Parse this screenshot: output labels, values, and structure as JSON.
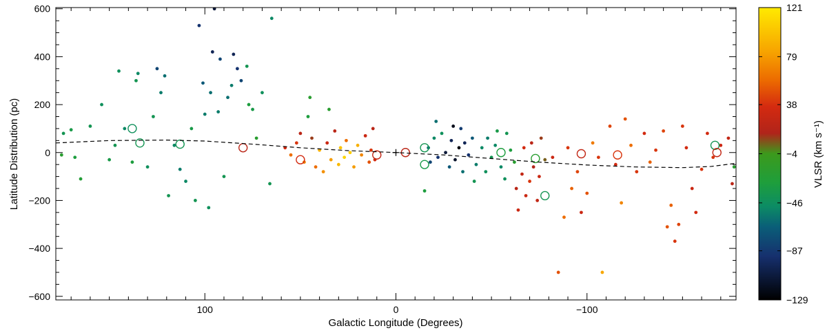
{
  "chart_data": {
    "type": "scatter",
    "xlabel": "Galactic Longitude (Degrees)",
    "ylabel": "Latitude Distribution (pc)",
    "xlim": [
      178,
      -178
    ],
    "ylim": [
      -615,
      605
    ],
    "x_ticks": [
      100,
      0,
      -100
    ],
    "x_tick_labels": [
      "100",
      "0",
      "−100"
    ],
    "y_ticks": [
      600,
      400,
      200,
      0,
      -200,
      -400,
      -600
    ],
    "y_tick_labels": [
      "600",
      "400",
      "200",
      "0",
      "−200",
      "−400",
      "−600"
    ],
    "colorbar": {
      "label": "VLSR (km s⁻¹)",
      "range": [
        -129,
        121
      ],
      "tick_values": [
        121,
        79,
        38,
        -4,
        -46,
        -87,
        -129
      ],
      "tick_labels": [
        "121",
        "79",
        "38",
        "−4",
        "−46",
        "−87",
        "−129"
      ],
      "colormap": [
        {
          "stop": 0.0,
          "color": "#ffea00"
        },
        {
          "stop": 0.15,
          "color": "#f7a400"
        },
        {
          "stop": 0.25,
          "color": "#ec6a00"
        },
        {
          "stop": 0.34,
          "color": "#d42a10"
        },
        {
          "stop": 0.43,
          "color": "#b0241a"
        },
        {
          "stop": 0.5,
          "color": "#3c9a1c"
        },
        {
          "stop": 0.6,
          "color": "#1e9e3c"
        },
        {
          "stop": 0.68,
          "color": "#0c8c64"
        },
        {
          "stop": 0.75,
          "color": "#0a5e78"
        },
        {
          "stop": 0.85,
          "color": "#16306e"
        },
        {
          "stop": 1.0,
          "color": "#000000"
        }
      ]
    },
    "warp_curve": {
      "style": "dashed",
      "points": [
        [
          178,
          40
        ],
        [
          150,
          50
        ],
        [
          120,
          52
        ],
        [
          100,
          48
        ],
        [
          75,
          35
        ],
        [
          50,
          20
        ],
        [
          25,
          8
        ],
        [
          0,
          0
        ],
        [
          -25,
          -10
        ],
        [
          -50,
          -25
        ],
        [
          -75,
          -40
        ],
        [
          -100,
          -52
        ],
        [
          -125,
          -60
        ],
        [
          -150,
          -63
        ],
        [
          -165,
          -58
        ],
        [
          -178,
          -45
        ]
      ]
    },
    "origin_marker": {
      "x": 0,
      "y": 0,
      "symbol": "+"
    },
    "series": [
      {
        "marker": "filled-dot",
        "points": [
          [
            174,
            80,
            -40
          ],
          [
            175,
            -10,
            -20
          ],
          [
            170,
            95,
            -35
          ],
          [
            168,
            -20,
            -30
          ],
          [
            165,
            -110,
            -25
          ],
          [
            160,
            110,
            -40
          ],
          [
            154,
            200,
            -45
          ],
          [
            150,
            -30,
            -35
          ],
          [
            147,
            30,
            -40
          ],
          [
            145,
            340,
            -45
          ],
          [
            142,
            100,
            -50
          ],
          [
            138,
            -40,
            -30
          ],
          [
            136,
            300,
            -40
          ],
          [
            135,
            330,
            -50
          ],
          [
            130,
            -60,
            -45
          ],
          [
            127,
            150,
            -40
          ],
          [
            125,
            350,
            -80
          ],
          [
            123,
            250,
            -55
          ],
          [
            121,
            320,
            -60
          ],
          [
            119,
            -180,
            -40
          ],
          [
            116,
            30,
            -50
          ],
          [
            113,
            -70,
            -55
          ],
          [
            110,
            -120,
            -50
          ],
          [
            107,
            100,
            -35
          ],
          [
            105,
            -200,
            -40
          ],
          [
            103,
            530,
            -90
          ],
          [
            101,
            290,
            -70
          ],
          [
            100,
            160,
            -55
          ],
          [
            98,
            -230,
            -45
          ],
          [
            97,
            250,
            -60
          ],
          [
            96,
            420,
            -100
          ],
          [
            95,
            600,
            -110
          ],
          [
            93,
            170,
            -55
          ],
          [
            92,
            390,
            -80
          ],
          [
            90,
            -100,
            -40
          ],
          [
            88,
            230,
            -60
          ],
          [
            86,
            280,
            -55
          ],
          [
            85,
            410,
            -100
          ],
          [
            83,
            350,
            -90
          ],
          [
            81,
            300,
            -80
          ],
          [
            78,
            360,
            -40
          ],
          [
            77,
            200,
            -30
          ],
          [
            75,
            180,
            -35
          ],
          [
            73,
            60,
            -20
          ],
          [
            70,
            250,
            -45
          ],
          [
            66,
            -130,
            -40
          ],
          [
            65,
            560,
            -50
          ],
          [
            58,
            20,
            35
          ],
          [
            55,
            -10,
            60
          ],
          [
            52,
            40,
            40
          ],
          [
            50,
            80,
            20
          ],
          [
            48,
            -40,
            70
          ],
          [
            46,
            150,
            -30
          ],
          [
            45,
            230,
            -20
          ],
          [
            44,
            60,
            10
          ],
          [
            42,
            -60,
            60
          ],
          [
            40,
            10,
            90
          ],
          [
            38,
            -80,
            75
          ],
          [
            36,
            40,
            30
          ],
          [
            35,
            180,
            -20
          ],
          [
            34,
            -30,
            80
          ],
          [
            32,
            90,
            20
          ],
          [
            30,
            -50,
            95
          ],
          [
            29,
            20,
            100
          ],
          [
            27,
            -20,
            110
          ],
          [
            26,
            50,
            60
          ],
          [
            24,
            0,
            105
          ],
          [
            22,
            -60,
            80
          ],
          [
            20,
            30,
            90
          ],
          [
            18,
            -10,
            70
          ],
          [
            16,
            70,
            30
          ],
          [
            14,
            -40,
            50
          ],
          [
            13,
            10,
            40
          ],
          [
            12,
            100,
            20
          ],
          [
            11,
            -30,
            35
          ],
          [
            -15,
            -160,
            -30
          ],
          [
            -17,
            20,
            -60
          ],
          [
            -18,
            -40,
            -80
          ],
          [
            -20,
            60,
            -50
          ],
          [
            -21,
            130,
            -60
          ],
          [
            -22,
            -20,
            -90
          ],
          [
            -24,
            80,
            -45
          ],
          [
            -26,
            0,
            -110
          ],
          [
            -28,
            -60,
            -70
          ],
          [
            -29,
            50,
            -100
          ],
          [
            -30,
            110,
            -120
          ],
          [
            -31,
            -30,
            -115
          ],
          [
            -33,
            20,
            -125
          ],
          [
            -34,
            100,
            -85
          ],
          [
            -35,
            -80,
            -60
          ],
          [
            -36,
            40,
            -100
          ],
          [
            -38,
            -10,
            -90
          ],
          [
            -40,
            60,
            -70
          ],
          [
            -41,
            -120,
            -40
          ],
          [
            -42,
            -50,
            -55
          ],
          [
            -45,
            20,
            -50
          ],
          [
            -47,
            -80,
            -45
          ],
          [
            -48,
            60,
            -55
          ],
          [
            -50,
            -20,
            -40
          ],
          [
            -52,
            30,
            -50
          ],
          [
            -53,
            90,
            -35
          ],
          [
            -55,
            -60,
            -50
          ],
          [
            -57,
            -110,
            -45
          ],
          [
            -58,
            80,
            -40
          ],
          [
            -60,
            10,
            -30
          ],
          [
            -62,
            -40,
            -20
          ],
          [
            -63,
            -150,
            20
          ],
          [
            -64,
            -240,
            30
          ],
          [
            -66,
            -90,
            25
          ],
          [
            -67,
            20,
            35
          ],
          [
            -68,
            -180,
            30
          ],
          [
            -70,
            -120,
            40
          ],
          [
            -71,
            40,
            20
          ],
          [
            -72,
            -60,
            15
          ],
          [
            -74,
            -200,
            25
          ],
          [
            -75,
            -100,
            30
          ],
          [
            -76,
            60,
            10
          ],
          [
            -78,
            -30,
            5
          ],
          [
            -82,
            -20,
            30
          ],
          [
            -85,
            -500,
            50
          ],
          [
            -88,
            -270,
            60
          ],
          [
            -90,
            20,
            40
          ],
          [
            -92,
            -150,
            55
          ],
          [
            -95,
            -80,
            45
          ],
          [
            -97,
            -250,
            30
          ],
          [
            -100,
            -170,
            50
          ],
          [
            -103,
            40,
            65
          ],
          [
            -106,
            -20,
            40
          ],
          [
            -108,
            -500,
            85
          ],
          [
            -112,
            110,
            45
          ],
          [
            -115,
            -50,
            35
          ],
          [
            -118,
            -210,
            70
          ],
          [
            -120,
            140,
            50
          ],
          [
            -123,
            30,
            60
          ],
          [
            -126,
            -80,
            40
          ],
          [
            -130,
            80,
            35
          ],
          [
            -133,
            -40,
            55
          ],
          [
            -136,
            10,
            40
          ],
          [
            -140,
            90,
            45
          ],
          [
            -142,
            -310,
            50
          ],
          [
            -144,
            -220,
            55
          ],
          [
            -146,
            -370,
            40
          ],
          [
            -148,
            -300,
            45
          ],
          [
            -150,
            110,
            40
          ],
          [
            -152,
            20,
            35
          ],
          [
            -155,
            -150,
            30
          ],
          [
            -157,
            -250,
            35
          ],
          [
            -160,
            -70,
            40
          ],
          [
            -163,
            80,
            35
          ],
          [
            -166,
            -20,
            40
          ],
          [
            -170,
            30,
            30
          ],
          [
            -174,
            60,
            25
          ],
          [
            -176,
            -130,
            20
          ],
          [
            -177,
            -60,
            -20
          ]
        ]
      },
      {
        "marker": "open-circle",
        "points": [
          [
            80,
            20,
            20
          ],
          [
            50,
            -30,
            35
          ],
          [
            113,
            35,
            -40
          ],
          [
            138,
            100,
            -45
          ],
          [
            134,
            40,
            -40
          ],
          [
            -15,
            -50,
            -35
          ],
          [
            -15,
            20,
            -40
          ],
          [
            -55,
            0,
            -30
          ],
          [
            -78,
            -180,
            -40
          ],
          [
            -73,
            -25,
            -20
          ],
          [
            -97,
            -5,
            25
          ],
          [
            -116,
            -10,
            40
          ],
          [
            -167,
            30,
            -40
          ],
          [
            -168,
            0,
            25
          ],
          [
            10,
            -10,
            25
          ],
          [
            -5,
            0,
            20
          ]
        ]
      }
    ]
  }
}
